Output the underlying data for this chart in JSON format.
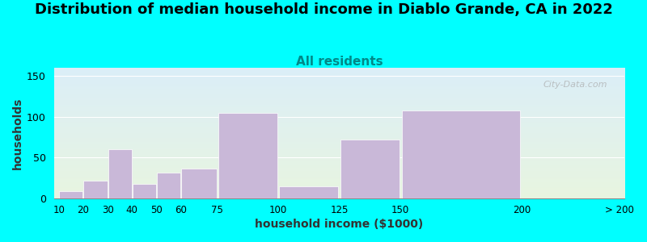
{
  "title": "Distribution of median household income in Diablo Grande, CA in 2022",
  "subtitle": "All residents",
  "xlabel": "household income ($1000)",
  "ylabel": "households",
  "background_color": "#00FFFF",
  "bar_color": "#c9b8d8",
  "bar_edge_color": "#ffffff",
  "ylim": [
    0,
    160
  ],
  "yticks": [
    0,
    50,
    100,
    150
  ],
  "title_fontsize": 13,
  "subtitle_fontsize": 11,
  "axis_label_fontsize": 10,
  "watermark": "City-Data.com",
  "tick_labels": [
    "10",
    "20",
    "30",
    "40",
    "50",
    "60",
    "75",
    "100",
    "125",
    "150",
    "200",
    "> 200"
  ],
  "bar_heights": [
    9,
    22,
    60,
    18,
    32,
    37,
    105,
    15,
    72,
    108
  ],
  "grad_top": "#e8f5e0",
  "grad_bottom": "#dbeef8",
  "subtitle_color": "#008888"
}
